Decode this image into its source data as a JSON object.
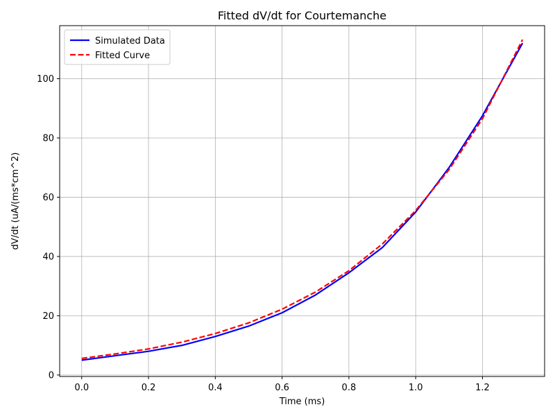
{
  "chart_data": {
    "type": "line",
    "title": "Fitted dV/dt for Courtemanche",
    "xlabel": "Time (ms)",
    "ylabel": "dV/dt (uA/(ms*cm^2)",
    "xlim": [
      -0.066,
      1.386
    ],
    "ylim": [
      -0.5,
      117.9
    ],
    "xticks": [
      0.0,
      0.2,
      0.4,
      0.6,
      0.8,
      1.0,
      1.2
    ],
    "xtick_labels": [
      "0.0",
      "0.2",
      "0.4",
      "0.6",
      "0.8",
      "1.0",
      "1.2"
    ],
    "yticks": [
      0,
      20,
      40,
      60,
      80,
      100
    ],
    "ytick_labels": [
      "0",
      "20",
      "40",
      "60",
      "80",
      "100"
    ],
    "grid": true,
    "legend_position": "top-left",
    "series": [
      {
        "name": "Simulated Data",
        "color": "#0000ff",
        "style": "solid",
        "x": [
          0.0,
          0.1,
          0.2,
          0.3,
          0.4,
          0.5,
          0.6,
          0.7,
          0.8,
          0.9,
          1.0,
          1.1,
          1.2,
          1.32
        ],
        "y": [
          5.0,
          6.5,
          8.0,
          10.0,
          13.0,
          16.5,
          21.0,
          27.0,
          34.5,
          43.0,
          55.0,
          70.0,
          87.5,
          112.0
        ]
      },
      {
        "name": "Fitted Curve",
        "color": "#ff0000",
        "style": "dashed",
        "x": [
          0.0,
          0.1,
          0.2,
          0.3,
          0.4,
          0.5,
          0.6,
          0.7,
          0.8,
          0.9,
          1.0,
          1.1,
          1.2,
          1.32
        ],
        "y": [
          5.6,
          7.1,
          8.8,
          11.1,
          14.0,
          17.6,
          22.2,
          28.0,
          35.2,
          44.2,
          55.5,
          69.3,
          86.5,
          113.2
        ]
      }
    ]
  }
}
